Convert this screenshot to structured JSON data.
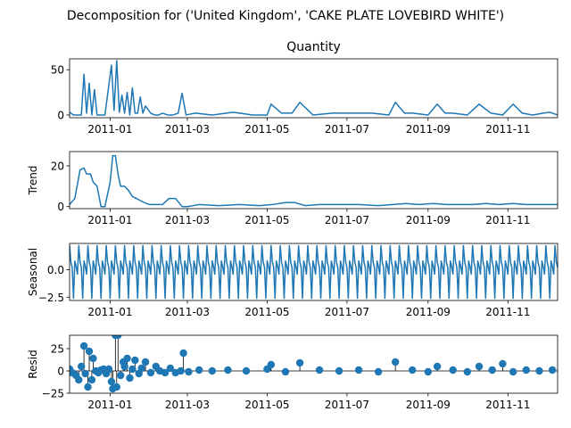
{
  "figure": {
    "suptitle": "Decomposition for ('United Kingdom', 'CAKE PLATE LOVEBIRD WHITE')"
  },
  "colors": {
    "series": "#1f77b4",
    "axis": "#000000",
    "zero_line": "#000000"
  },
  "x_axis": {
    "start": "2010-12-01",
    "end": "2011-12-09",
    "ticks": [
      {
        "date": "2011-01-01",
        "label": "2011-01"
      },
      {
        "date": "2011-03-01",
        "label": "2011-03"
      },
      {
        "date": "2011-05-01",
        "label": "2011-05"
      },
      {
        "date": "2011-07-01",
        "label": "2011-07"
      },
      {
        "date": "2011-09-01",
        "label": "2011-09"
      },
      {
        "date": "2011-11-01",
        "label": "2011-11"
      }
    ]
  },
  "chart_data": [
    {
      "type": "line",
      "title": "Quantity",
      "ylabel": "",
      "ylim": [
        -3,
        62
      ],
      "yticks": [
        {
          "v": 0,
          "label": "0"
        },
        {
          "v": 50,
          "label": "50"
        }
      ],
      "grid": false,
      "series": [
        {
          "x": [
            "2010-12-01",
            "2010-12-04",
            "2010-12-07",
            "2010-12-10",
            "2010-12-12",
            "2010-12-14",
            "2010-12-16",
            "2010-12-18",
            "2010-12-20",
            "2010-12-22",
            "2010-12-24",
            "2010-12-28",
            "2011-01-02",
            "2011-01-04",
            "2011-01-06",
            "2011-01-08",
            "2011-01-10",
            "2011-01-12",
            "2011-01-14",
            "2011-01-16",
            "2011-01-18",
            "2011-01-20",
            "2011-01-22",
            "2011-01-24",
            "2011-01-26",
            "2011-01-28",
            "2011-02-01",
            "2011-02-04",
            "2011-02-07",
            "2011-02-10",
            "2011-02-14",
            "2011-02-18",
            "2011-02-22",
            "2011-02-25",
            "2011-02-28",
            "2011-03-07",
            "2011-03-20",
            "2011-04-05",
            "2011-04-20",
            "2011-05-01",
            "2011-05-04",
            "2011-05-12",
            "2011-05-20",
            "2011-05-26",
            "2011-06-05",
            "2011-06-20",
            "2011-07-05",
            "2011-07-20",
            "2011-08-02",
            "2011-08-07",
            "2011-08-14",
            "2011-08-20",
            "2011-09-01",
            "2011-09-08",
            "2011-09-14",
            "2011-09-20",
            "2011-10-01",
            "2011-10-10",
            "2011-10-19",
            "2011-10-28",
            "2011-11-05",
            "2011-11-12",
            "2011-11-20",
            "2011-11-28",
            "2011-12-03",
            "2011-12-09"
          ],
          "values": [
            3,
            0,
            0,
            0,
            45,
            2,
            35,
            0,
            28,
            0,
            0,
            0,
            55,
            5,
            60,
            3,
            22,
            2,
            25,
            0,
            30,
            2,
            2,
            20,
            2,
            10,
            2,
            0,
            0,
            2,
            0,
            0,
            2,
            24,
            0,
            2,
            0,
            3,
            0,
            0,
            12,
            2,
            2,
            14,
            0,
            2,
            2,
            2,
            0,
            14,
            2,
            2,
            0,
            12,
            2,
            2,
            0,
            12,
            2,
            0,
            12,
            2,
            0,
            2,
            3,
            0
          ]
        }
      ]
    },
    {
      "type": "line",
      "title": "",
      "ylabel": "Trend",
      "ylim": [
        -1,
        27
      ],
      "yticks": [
        {
          "v": 0,
          "label": "0"
        },
        {
          "v": 20,
          "label": "20"
        }
      ],
      "grid": false,
      "series": [
        {
          "x": [
            "2010-12-01",
            "2010-12-05",
            "2010-12-09",
            "2010-12-12",
            "2010-12-14",
            "2010-12-17",
            "2010-12-19",
            "2010-12-22",
            "2010-12-25",
            "2010-12-28",
            "2011-01-01",
            "2011-01-03",
            "2011-01-05",
            "2011-01-07",
            "2011-01-09",
            "2011-01-12",
            "2011-01-15",
            "2011-01-18",
            "2011-01-21",
            "2011-01-24",
            "2011-01-27",
            "2011-01-31",
            "2011-02-05",
            "2011-02-10",
            "2011-02-15",
            "2011-02-20",
            "2011-02-25",
            "2011-03-01",
            "2011-03-10",
            "2011-03-25",
            "2011-04-10",
            "2011-04-25",
            "2011-05-05",
            "2011-05-15",
            "2011-05-22",
            "2011-05-30",
            "2011-06-10",
            "2011-06-25",
            "2011-07-10",
            "2011-07-25",
            "2011-08-05",
            "2011-08-15",
            "2011-08-25",
            "2011-09-05",
            "2011-09-15",
            "2011-09-25",
            "2011-10-05",
            "2011-10-15",
            "2011-10-25",
            "2011-11-05",
            "2011-11-15",
            "2011-11-25",
            "2011-12-09"
          ],
          "values": [
            1,
            4,
            18,
            19,
            16,
            16,
            12,
            10,
            0,
            0,
            12,
            25,
            25,
            16,
            10,
            10,
            8,
            5,
            4,
            3,
            2,
            1,
            1,
            1,
            4,
            4,
            0,
            0,
            1,
            0.5,
            1,
            0.5,
            1,
            2,
            2,
            0.5,
            1,
            1,
            1,
            0.5,
            1,
            1.5,
            1,
            1.5,
            1,
            1,
            1,
            1.5,
            1,
            1.5,
            1,
            1,
            1
          ]
        }
      ]
    },
    {
      "type": "line",
      "title": "",
      "ylabel": "Seasonal",
      "ylim": [
        -2.8,
        2.4
      ],
      "yticks": [
        {
          "v": -2.5,
          "label": "−2.5"
        },
        {
          "v": 0,
          "label": "0.0"
        }
      ],
      "grid": false,
      "period_days": 7,
      "pattern": [
        2.2,
        0.7,
        0.2,
        -2.6,
        0.8,
        0.3,
        -0.4
      ]
    },
    {
      "type": "scatter",
      "title": "",
      "ylabel": "Resid",
      "ylim": [
        -25,
        40
      ],
      "yticks": [
        {
          "v": -25,
          "label": "−25"
        },
        {
          "v": 0,
          "label": "0"
        },
        {
          "v": 25,
          "label": "25"
        }
      ],
      "grid": false,
      "zero_line": true,
      "points": {
        "x": [
          "2010-12-01",
          "2010-12-03",
          "2010-12-06",
          "2010-12-08",
          "2010-12-10",
          "2010-12-12",
          "2010-12-13",
          "2010-12-15",
          "2010-12-16",
          "2010-12-18",
          "2010-12-19",
          "2010-12-21",
          "2010-12-23",
          "2010-12-25",
          "2010-12-27",
          "2010-12-29",
          "2010-12-31",
          "2011-01-02",
          "2011-01-03",
          "2011-01-05",
          "2011-01-06",
          "2011-01-07",
          "2011-01-09",
          "2011-01-11",
          "2011-01-12",
          "2011-01-14",
          "2011-01-16",
          "2011-01-18",
          "2011-01-20",
          "2011-01-23",
          "2011-01-25",
          "2011-01-28",
          "2011-02-01",
          "2011-02-05",
          "2011-02-08",
          "2011-02-12",
          "2011-02-16",
          "2011-02-20",
          "2011-02-24",
          "2011-02-26",
          "2011-03-02",
          "2011-03-10",
          "2011-03-20",
          "2011-04-01",
          "2011-04-15",
          "2011-05-01",
          "2011-05-04",
          "2011-05-15",
          "2011-05-26",
          "2011-06-10",
          "2011-06-25",
          "2011-07-10",
          "2011-07-25",
          "2011-08-07",
          "2011-08-20",
          "2011-09-01",
          "2011-09-08",
          "2011-09-20",
          "2011-10-01",
          "2011-10-10",
          "2011-10-20",
          "2011-10-28",
          "2011-11-05",
          "2011-11-15",
          "2011-11-25",
          "2011-12-05"
        ],
        "values": [
          2,
          -2,
          -5,
          -10,
          5,
          28,
          -3,
          -18,
          22,
          -10,
          14,
          0,
          -2,
          1,
          2,
          -3,
          2,
          -12,
          -20,
          40,
          -18,
          40,
          -5,
          10,
          5,
          14,
          -8,
          2,
          12,
          -3,
          3,
          10,
          -2,
          5,
          0,
          -2,
          3,
          -2,
          0,
          20,
          -1,
          1,
          0,
          1,
          0,
          2,
          7,
          -1,
          9,
          1,
          0,
          1,
          -1,
          10,
          1,
          -1,
          5,
          1,
          -1,
          5,
          1,
          8,
          -1,
          1,
          0,
          1
        ]
      }
    }
  ]
}
